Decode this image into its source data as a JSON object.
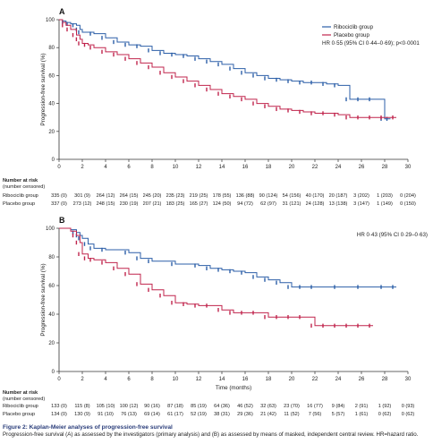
{
  "figure": {
    "caption_title": "Figure 2: Kaplan-Meier analyses of progression-free survival",
    "caption_body": "Progression-free survival (A) as assessed by the investigators (primary analysis) and (B) as assessed by means of masked, independent central review. HR=hazard ratio.",
    "risk_header": [
      "Number at risk",
      "(number censored)"
    ],
    "colors": {
      "ribociclib": "#2c5fa8",
      "placebo": "#c0244c"
    }
  },
  "chart_data": [
    {
      "type": "line",
      "panel": "A",
      "title": "",
      "xlabel": "",
      "ylabel": "Progression-free survival (%)",
      "xlim": [
        0,
        30
      ],
      "ylim": [
        0,
        100
      ],
      "xticks": [
        0,
        2,
        4,
        6,
        8,
        10,
        12,
        14,
        16,
        18,
        20,
        22,
        24,
        26,
        28,
        30
      ],
      "yticks": [
        0,
        20,
        40,
        60,
        80,
        100
      ],
      "grid": false,
      "legend": {
        "placement": "top-right",
        "entries": [
          "Ribociclib group",
          "Placebo group"
        ]
      },
      "annotation": "HR 0·55 (95% CI 0·44–0·69); p<0·0001",
      "series": [
        {
          "name": "Ribociclib group",
          "color": "#2c5fa8",
          "x": [
            0,
            0.3,
            0.6,
            1,
            1.5,
            1.8,
            2,
            3,
            4,
            5,
            6,
            7,
            8,
            9,
            10,
            11,
            12,
            13,
            14,
            15,
            16,
            17,
            18,
            19,
            20,
            21,
            22,
            23,
            24,
            25,
            26,
            27,
            28,
            28.5
          ],
          "y": [
            100,
            99,
            98,
            97,
            96,
            93,
            91,
            90,
            87,
            84,
            82,
            81,
            78,
            76,
            75,
            74,
            72,
            70,
            68,
            65,
            62,
            60,
            58,
            57,
            56,
            55,
            55,
            54,
            53,
            43,
            43,
            43,
            29,
            29
          ]
        },
        {
          "name": "Placebo group",
          "color": "#c0244c",
          "x": [
            0,
            0.3,
            0.6,
            1,
            1.5,
            1.8,
            2,
            2.5,
            3,
            4,
            5,
            6,
            7,
            8,
            9,
            10,
            11,
            12,
            13,
            14,
            15,
            16,
            17,
            18,
            19,
            20,
            21,
            22,
            23,
            24,
            25,
            26,
            27,
            28,
            29
          ],
          "y": [
            100,
            98,
            96,
            93,
            89,
            86,
            83,
            82,
            80,
            77,
            75,
            72,
            69,
            66,
            62,
            59,
            56,
            53,
            50,
            47,
            45,
            43,
            40,
            38,
            36,
            35,
            34,
            33,
            33,
            32,
            30,
            30,
            30,
            30,
            30
          ]
        }
      ],
      "risk_table": {
        "x": [
          0,
          2,
          4,
          6,
          8,
          10,
          12,
          14,
          16,
          18,
          20,
          22,
          24,
          26,
          28,
          30
        ],
        "rows": [
          {
            "group": "Ribociclib group",
            "values": [
              "335 (0)",
              "301 (9)",
              "264 (12)",
              "264 (15)",
              "245 (20)",
              "235 (23)",
              "219 (25)",
              "178 (55)",
              "136 (88)",
              "90 (124)",
              "54 (156)",
              "40 (170)",
              "20 (187)",
              "3 (202)",
              "1 (203)",
              "0 (204)"
            ]
          },
          {
            "group": "Placebo group",
            "values": [
              "337 (0)",
              "273 (12)",
              "248 (15)",
              "230 (19)",
              "207 (21)",
              "183 (25)",
              "165 (27)",
              "124 (50)",
              "94 (72)",
              "62 (97)",
              "31 (121)",
              "24 (128)",
              "13 (138)",
              "3 (147)",
              "1 (149)",
              "0 (150)"
            ]
          }
        ]
      }
    },
    {
      "type": "line",
      "panel": "B",
      "title": "",
      "xlabel": "Time (months)",
      "ylabel": "Progression-free survival (%)",
      "xlim": [
        0,
        30
      ],
      "ylim": [
        0,
        100
      ],
      "xticks": [
        0,
        2,
        4,
        6,
        8,
        10,
        12,
        14,
        16,
        18,
        20,
        22,
        24,
        26,
        28,
        30
      ],
      "yticks": [
        0,
        20,
        40,
        60,
        80,
        100
      ],
      "grid": false,
      "annotation": "HR 0·43 (95% CI 0·29–0·63)",
      "series": [
        {
          "name": "Ribociclib group",
          "color": "#2c5fa8",
          "x": [
            0,
            1,
            1.5,
            1.8,
            2,
            2.5,
            3,
            4,
            6,
            7,
            8,
            10,
            12,
            13,
            14,
            15,
            16,
            17,
            18,
            19,
            20,
            21,
            22,
            24,
            26,
            28,
            29
          ],
          "y": [
            100,
            99,
            97,
            95,
            93,
            89,
            86,
            85,
            83,
            79,
            77,
            75,
            74,
            72,
            71,
            70,
            69,
            66,
            64,
            62,
            59,
            59,
            59,
            59,
            59,
            59,
            59
          ]
        },
        {
          "name": "Placebo group",
          "color": "#c0244c",
          "x": [
            0,
            1,
            1.5,
            1.8,
            2,
            2.5,
            3,
            4,
            5,
            6,
            7,
            8,
            9,
            10,
            11,
            12,
            13,
            14,
            15,
            16,
            17,
            18,
            19,
            20,
            21,
            22,
            23,
            24,
            25,
            26,
            27
          ],
          "y": [
            100,
            98,
            95,
            90,
            82,
            79,
            78,
            76,
            72,
            68,
            61,
            57,
            53,
            48,
            47,
            46,
            46,
            43,
            41,
            41,
            41,
            38,
            38,
            38,
            38,
            32,
            32,
            32,
            32,
            32,
            32
          ]
        }
      ],
      "risk_table": {
        "x": [
          0,
          2,
          4,
          6,
          8,
          10,
          12,
          14,
          16,
          18,
          20,
          22,
          24,
          26,
          28,
          30
        ],
        "rows": [
          {
            "group": "Ribociclib group",
            "values": [
              "133 (0)",
              "115 (8)",
              "105 (10)",
              "100 (12)",
              "90 (16)",
              "87 (18)",
              "85 (19)",
              "64 (36)",
              "46 (52)",
              "32 (63)",
              "23 (70)",
              "16 (77)",
              "9 (84)",
              "2 (91)",
              "1 (92)",
              "0 (93)"
            ]
          },
          {
            "group": "Placebo group",
            "values": [
              "134 (0)",
              "130 (9)",
              "91 (10)",
              "76 (13)",
              "69 (14)",
              "61 (17)",
              "52 (19)",
              "38 (31)",
              "29 (36)",
              "21 (42)",
              "11 (52)",
              "7 (56)",
              "5 (57)",
              "1 (61)",
              "0 (62)",
              "0 (62)"
            ]
          }
        ]
      }
    }
  ]
}
